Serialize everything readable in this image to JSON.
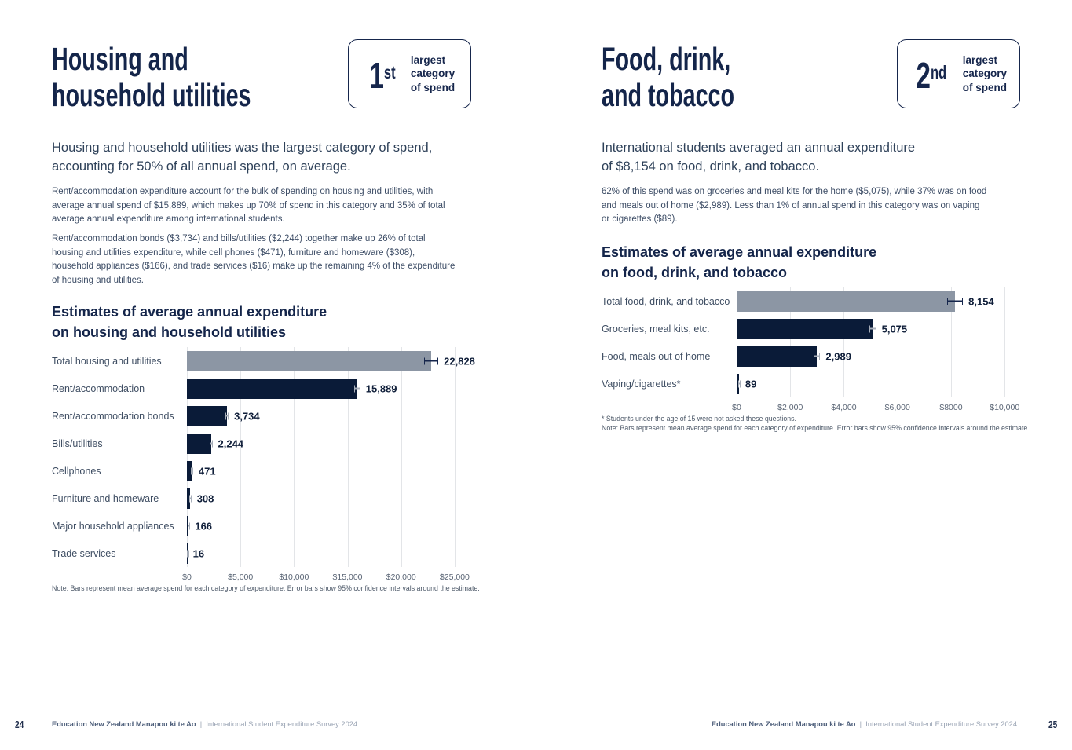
{
  "colors": {
    "heading_navy": "#14254a",
    "bar_navy": "#0a1b38",
    "bar_gray": "#8c96a4",
    "whisker_on_total": "#16264c",
    "whisker_on_bar": "#a7aeb9",
    "body_text": "#3d4d66",
    "gridline": "#e3e5e8",
    "background": "#ffffff"
  },
  "left_page": {
    "title_lines": [
      "Housing and",
      "household utilities"
    ],
    "badge": {
      "rank": "1",
      "suffix": "st",
      "label_lines": [
        "largest",
        "category",
        "of spend"
      ]
    },
    "intro_lines": [
      "Housing and household utilities was the largest category of spend,",
      "accounting for 50% of all annual spend, on average."
    ],
    "paragraph1_lines": [
      "Rent/accommodation expenditure account for the bulk of spending on housing and utilities, with",
      "average annual spend of $15,889, which makes up 70% of spend in this category and 35% of total",
      "average annual expenditure among international students."
    ],
    "paragraph2_lines": [
      "Rent/accommodation bonds ($3,734) and bills/utilities ($2,244) together make up 26% of total",
      "housing and utilities expenditure, while cell phones ($471), furniture and homeware ($308),",
      "household appliances ($166), and trade services ($16) make up the remaining 4% of the expenditure",
      "of housing and utilities."
    ],
    "chart_title_lines": [
      "Estimates of average annual expenditure",
      "on housing and household utilities"
    ],
    "note_lines": [
      "Note: Bars represent mean average spend for each category of expenditure. Error bars show 95% confidence intervals around the estimate."
    ],
    "page_number": "24"
  },
  "right_page": {
    "title_lines": [
      "Food, drink,",
      "and tobacco"
    ],
    "badge": {
      "rank": "2",
      "suffix": "nd",
      "label_lines": [
        "largest",
        "category",
        "of spend"
      ]
    },
    "intro_lines": [
      "International students averaged an annual expenditure",
      "of $8,154 on food, drink, and tobacco."
    ],
    "paragraph1_lines": [
      "62% of this spend was on groceries and meal kits for the home ($5,075), while 37% was on food",
      "and meals out of home ($2,989). Less than 1% of annual spend in this category was on vaping",
      "or cigarettes ($89)."
    ],
    "chart_title_lines": [
      "Estimates of average annual expenditure",
      "on food, drink, and tobacco"
    ],
    "note_lines": [
      "* Students under the age of 15 were not asked these questions.",
      "Note: Bars represent mean average spend for each category of expenditure. Error bars show 95% confidence intervals around the estimate."
    ],
    "page_number": "25"
  },
  "footer": {
    "brand": "Education New Zealand Manapou ki te Ao",
    "divider": "  |  ",
    "survey": "International Student Expenditure Survey 2024"
  },
  "chart_data": [
    {
      "id": "housing-expenditure",
      "type": "bar",
      "orientation": "horizontal",
      "title": "Estimates of average annual expenditure on housing and household utilities",
      "categories": [
        "Total housing and utilities",
        "Rent/accommodation",
        "Rent/accommodation bonds",
        "Bills/utilities",
        "Cellphones",
        "Furniture and homeware",
        "Major household appliances",
        "Trade services"
      ],
      "values": [
        22828,
        15889,
        3734,
        2244,
        471,
        308,
        166,
        16
      ],
      "value_labels": [
        "22,828",
        "15,889",
        "3,734",
        "2,244",
        "471",
        "308",
        "166",
        "16"
      ],
      "error_margins": [
        650,
        300,
        160,
        140,
        110,
        110,
        80,
        30
      ],
      "highlight_total_index": 0,
      "x_ticks": [
        {
          "value": 0,
          "label": "$0"
        },
        {
          "value": 5000,
          "label": "$5,000"
        },
        {
          "value": 10000,
          "label": "$10,000"
        },
        {
          "value": 15000,
          "label": "$15,000"
        },
        {
          "value": 20000,
          "label": "$20,000"
        },
        {
          "value": 25000,
          "label": "$25,000"
        }
      ],
      "xlim": [
        0,
        26400
      ],
      "grid": true,
      "bar_color": "#0a1b38",
      "total_bar_color": "#8c96a4",
      "whisker_color": "#a7aeb9",
      "whisker_total_color": "#16264c",
      "note": "Bars represent mean average spend; error bars show 95% confidence intervals"
    },
    {
      "id": "food-drink-tobacco-expenditure",
      "type": "bar",
      "orientation": "horizontal",
      "title": "Estimates of average annual expenditure on food, drink, and tobacco",
      "categories": [
        "Total food, drink, and tobacco",
        "Groceries, meal kits, etc.",
        "Food, meals out of home",
        "Vaping/cigarettes*"
      ],
      "values": [
        8154,
        5075,
        2989,
        89
      ],
      "value_labels": [
        "8,154",
        "5,075",
        "2,989",
        "89"
      ],
      "error_margins": [
        290,
        130,
        130,
        25
      ],
      "highlight_total_index": 0,
      "x_ticks": [
        {
          "value": 0,
          "label": "$0"
        },
        {
          "value": 2000,
          "label": "$2,000"
        },
        {
          "value": 4000,
          "label": "$4,000"
        },
        {
          "value": 6000,
          "label": "$6,000"
        },
        {
          "value": 8000,
          "label": "$8000"
        },
        {
          "value": 10000,
          "label": "$10,000"
        }
      ],
      "xlim": [
        0,
        10550
      ],
      "grid": true,
      "bar_color": "#0a1b38",
      "total_bar_color": "#8c96a4",
      "whisker_color": "#a7aeb9",
      "whisker_total_color": "#16264c",
      "note": "Bars represent mean average spend; error bars show 95% confidence intervals"
    }
  ]
}
